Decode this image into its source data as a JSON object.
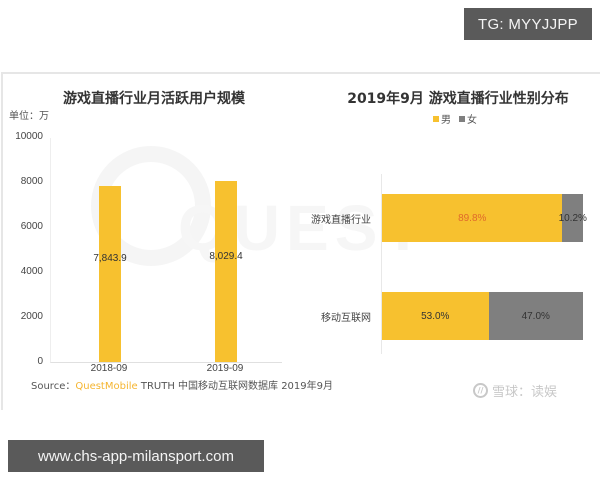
{
  "overlay": {
    "tg_badge": "TG: MYYJJPP",
    "url_badge": "www.chs-app-milansport.com"
  },
  "watermark": {
    "text": "QUEST"
  },
  "left_chart": {
    "title": "游戏直播行业月活跃用户规模",
    "unit": "单位：万",
    "yticks": [
      "10000",
      "8000",
      "6000",
      "4000",
      "2000",
      "0"
    ],
    "bars": [
      {
        "category": "2018-09",
        "value": 7843.9,
        "label": "7,843.9"
      },
      {
        "category": "2019-09",
        "value": 8029.4,
        "label": "8,029.4"
      }
    ],
    "source_prefix": "Source：",
    "source_brand": "QuestMobile",
    "source_suffix": " TRUTH 中国移动互联网数据库 2019年9月"
  },
  "right_chart": {
    "title": "2019年9月 游戏直播行业性别分布",
    "legend": [
      {
        "label": "男",
        "color": "#f7c12f"
      },
      {
        "label": "女",
        "color": "#7f7f7f"
      }
    ],
    "rows": [
      {
        "category": "游戏直播行业",
        "male": 89.8,
        "female": 10.2,
        "male_label": "89.8%",
        "female_label": "10.2%"
      },
      {
        "category": "移动互联网",
        "male": 53.0,
        "female": 47.0,
        "male_label": "53.0%",
        "female_label": "47.0%"
      }
    ]
  },
  "footer_logo": {
    "icon": "xueqiu-logo-icon",
    "text": "雪球：读娱"
  },
  "colors": {
    "male": "#f7c12f",
    "female": "#7f7f7f",
    "male_label_highlight": "#e06a2b",
    "brand": "#f5b530"
  },
  "chart_data": [
    {
      "type": "bar",
      "title": "游戏直播行业月活跃用户规模",
      "categories": [
        "2018-09",
        "2019-09"
      ],
      "values": [
        7843.9,
        8029.4
      ],
      "data_labels": [
        "7,843.9",
        "8,029.4"
      ],
      "xlabel": "",
      "ylabel": "单位：万",
      "ylim": [
        0,
        10000
      ],
      "yticks": [
        0,
        2000,
        4000,
        6000,
        8000,
        10000
      ],
      "grid": false,
      "source": "Source：QuestMobile TRUTH 中国移动互联网数据库 2019年9月"
    },
    {
      "type": "bar",
      "orientation": "horizontal",
      "stacked": true,
      "title": "2019年9月 游戏直播行业性别分布",
      "categories": [
        "游戏直播行业",
        "移动互联网"
      ],
      "series": [
        {
          "name": "男",
          "values": [
            89.8,
            53.0
          ],
          "color": "#f7c12f"
        },
        {
          "name": "女",
          "values": [
            10.2,
            47.0
          ],
          "color": "#7f7f7f"
        }
      ],
      "unit": "%",
      "xlim": [
        0,
        100
      ],
      "legend_position": "top",
      "grid": false
    }
  ]
}
